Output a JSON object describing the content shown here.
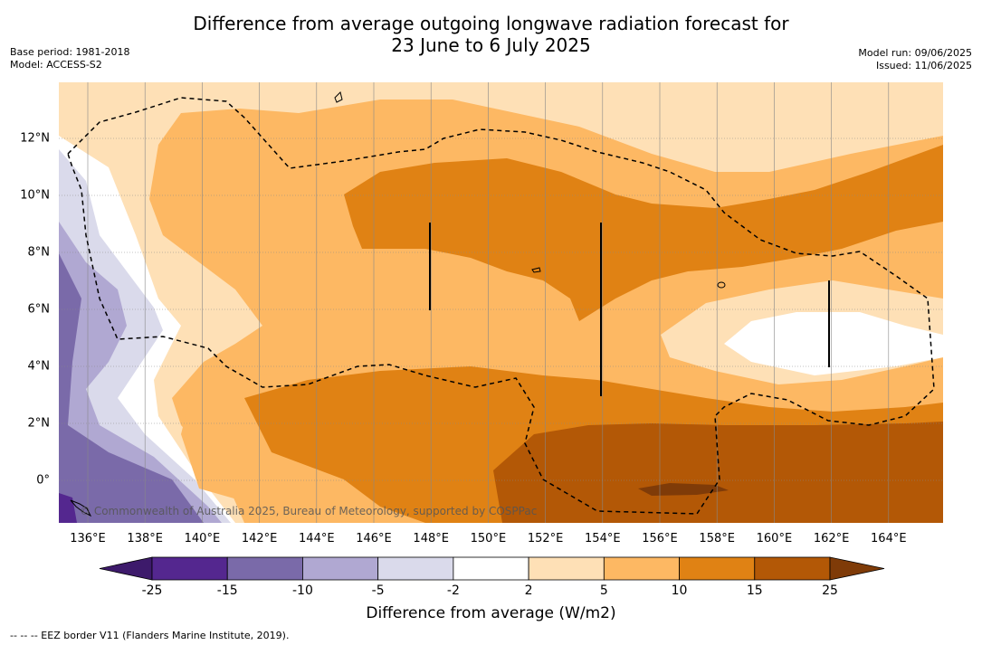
{
  "title_line1": "Difference from average outgoing longwave radiation forecast for",
  "title_line2": "23 June to 6 July 2025",
  "meta_left": {
    "base_period": "Base period: 1981-2018",
    "model": "Model: ACCESS-S2"
  },
  "meta_right": {
    "model_run": "Model run: 09/06/2025",
    "issued": "Issued: 11/06/2025"
  },
  "x_ticks": [
    "136°E",
    "138°E",
    "140°E",
    "142°E",
    "144°E",
    "146°E",
    "148°E",
    "150°E",
    "152°E",
    "154°E",
    "156°E",
    "158°E",
    "160°E",
    "162°E",
    "164°E"
  ],
  "y_ticks": [
    "12°N",
    "10°N",
    "8°N",
    "6°N",
    "4°N",
    "2°N",
    "0°"
  ],
  "copyright": "© Commonwealth of Australia 2025, Bureau of Meteorology, supported by COSPPac",
  "colorbar": {
    "labels": [
      "-25",
      "-15",
      "-10",
      "-5",
      "-2",
      "2",
      "5",
      "10",
      "15",
      "25"
    ],
    "colors": [
      "#3d1a6b",
      "#54278f",
      "#7a6aa9",
      "#b0a8d2",
      "#dadaeb",
      "#ffffff",
      "#fee0b6",
      "#fdb863",
      "#e08214",
      "#b35806",
      "#7f3b08"
    ],
    "title": "Difference from average (W/m2)"
  },
  "footnote": "--  --  -- EEZ border V11 (Flanders Marine Institute, 2019)."
}
